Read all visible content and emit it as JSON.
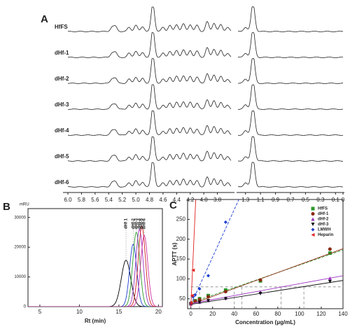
{
  "chart_data": [
    {
      "type": "spectra",
      "label": "A",
      "series": [
        {
          "name": "HfFS"
        },
        {
          "name": "dHf-1"
        },
        {
          "name": "dHf-2"
        },
        {
          "name": "dHf-3"
        },
        {
          "name": "dHf-4"
        },
        {
          "name": "dHf-5"
        },
        {
          "name": "dHf-6"
        }
      ],
      "x_segments": [
        [
          6.0,
          3.6
        ],
        [
          1.4,
          0
        ]
      ],
      "xticks": [
        {
          "value": 6,
          "label": "6.0"
        },
        {
          "value": 5.8,
          "label": "5.8"
        },
        {
          "value": 5.6,
          "label": "5.6"
        },
        {
          "value": 5.4,
          "label": "5.4"
        },
        {
          "value": 5.2,
          "label": "5.2"
        },
        {
          "value": 5,
          "label": "5.0"
        },
        {
          "value": 4.8,
          "label": "4.8"
        },
        {
          "value": 4.6,
          "label": "4.6"
        },
        {
          "value": 4.4,
          "label": "4.4"
        },
        {
          "value": 4.2,
          "label": "4.2"
        },
        {
          "value": 4,
          "label": "4.0"
        },
        {
          "value": 3.8,
          "label": "3.8"
        },
        {
          "value": 1.3,
          "label": "1.3"
        },
        {
          "value": 1.1,
          "label": "1.1"
        },
        {
          "value": 0.9,
          "label": "0.9"
        },
        {
          "value": 0.7,
          "label": "0.7"
        },
        {
          "value": 0.5,
          "label": "0.5"
        },
        {
          "value": 0.3,
          "label": "0.3"
        },
        {
          "value": 0.1,
          "label": "0.1"
        },
        0
      ],
      "peaks": {
        "ppm": [
          5.35,
          5.3,
          5.1,
          5.0,
          4.9,
          4.75,
          4.6,
          4.5,
          4.4,
          4.3,
          4.2,
          4.1,
          3.95,
          3.85,
          3.75,
          3.65,
          1.3,
          1.2
        ],
        "height": [
          0.3,
          0.35,
          0.3,
          0.45,
          0.35,
          2.0,
          0.3,
          0.45,
          0.5,
          0.55,
          0.5,
          0.45,
          0.7,
          0.6,
          0.5,
          0.3,
          0.3,
          2.0
        ]
      },
      "peak_width": 0.025
    },
    {
      "type": "chromatogram",
      "label": "B",
      "ylabel": "mRU",
      "xlabel": "Rt (min)",
      "xlim": [
        3.5,
        20.5
      ],
      "ylim": [
        0,
        33000
      ],
      "xticks": [
        5,
        10,
        15,
        20
      ],
      "yticks": [
        0,
        10000,
        20000,
        30000
      ],
      "series": [
        {
          "name": "dHf 1",
          "color": "#000000",
          "center": 15.9,
          "height": 15600,
          "width": 0.6
        },
        {
          "name": "dHf-2",
          "color": "#1f3fd0",
          "center": 16.8,
          "height": 21000,
          "width": 0.45
        },
        {
          "name": "dHf-3",
          "color": "#2a9a2a",
          "center": 17.2,
          "height": 25000,
          "width": 0.45
        },
        {
          "name": "dHf-4",
          "color": "#9a30c0",
          "center": 17.6,
          "height": 26000,
          "width": 0.45
        },
        {
          "name": "dHf-5",
          "color": "#d02020",
          "center": 17.9,
          "height": 27000,
          "width": 0.45
        },
        {
          "name": "dHf-6",
          "color": "#d030a0",
          "center": 18.2,
          "height": 24000,
          "width": 0.45
        }
      ]
    },
    {
      "type": "scatter_fit",
      "label": "C",
      "xlabel": "Concentration (μg/mL)",
      "ylabel": "APTT (s)",
      "xlim": [
        -3,
        140
      ],
      "ylim": [
        25,
        300
      ],
      "xticks": [
        0,
        20,
        40,
        60,
        80,
        100,
        120,
        140
      ],
      "yticks": [
        50,
        100,
        150,
        200,
        250
      ],
      "ref_y": 80,
      "ref_x": [
        8,
        40,
        47,
        83,
        104
      ],
      "series": [
        {
          "name": "HfFS",
          "color": "#2a9a2a",
          "marker": "square",
          "x": [
            0,
            4,
            8,
            16,
            32,
            64,
            128
          ],
          "values": [
            38,
            45,
            50,
            58,
            72,
            95,
            165
          ],
          "fit": [
            40,
            0.95
          ],
          "dashed": true
        },
        {
          "name": "dHf-1",
          "color": "#8b2a10",
          "marker": "circle",
          "x": [
            0,
            4,
            8,
            16,
            32,
            64,
            128
          ],
          "values": [
            38,
            44,
            48,
            55,
            68,
            97,
            175
          ],
          "fit": [
            36,
            1.0
          ],
          "dashed": false
        },
        {
          "name": "dHf-2",
          "color": "#9a30c0",
          "marker": "triangle-up",
          "x": [
            0,
            8,
            16,
            32,
            64,
            128
          ],
          "values": [
            37,
            42,
            46,
            52,
            67,
            102
          ],
          "fit": [
            38,
            0.5
          ],
          "dashed": false
        },
        {
          "name": "dHf-3",
          "color": "#111111",
          "marker": "triangle-down",
          "x": [
            0,
            8,
            16,
            32,
            64,
            128
          ],
          "values": [
            37,
            41,
            45,
            50,
            63,
            93
          ],
          "fit": [
            36,
            0.43
          ],
          "dashed": false
        },
        {
          "name": "LMWH",
          "color": "#1f3fd0",
          "marker": "diamond",
          "x": [
            0,
            2,
            4,
            8,
            16,
            32
          ],
          "values": [
            40,
            55,
            60,
            75,
            108,
            243
          ],
          "fit": [
            35,
            6
          ],
          "dashed": true
        },
        {
          "name": "Heparin",
          "color": "#e02020",
          "marker": "triangle-left",
          "x": [
            0,
            1,
            2
          ],
          "values": [
            40,
            58,
            122
          ],
          "fit": [
            30,
            60
          ],
          "dashed": false
        }
      ]
    }
  ]
}
